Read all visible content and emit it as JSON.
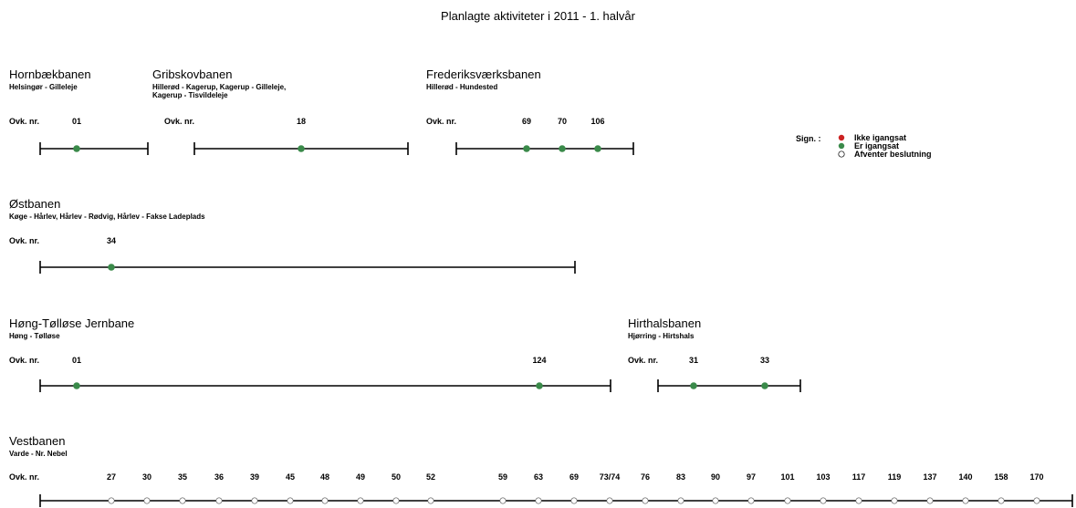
{
  "title": "Planlagte aktiviteter i 2011 - 1. halvår",
  "ovk_label": "Ovk. nr.",
  "colors": {
    "red": "#cc2222",
    "green": "#3a8a4a",
    "open": "#ffffff",
    "line": "#000000"
  },
  "legend": {
    "label": "Sign. :",
    "items": [
      {
        "color": "red",
        "text": "Ikke igangsat"
      },
      {
        "color": "green",
        "text": "Er igangsat"
      },
      {
        "color": "open",
        "text": "Afventer beslutning"
      }
    ]
  },
  "lines": [
    {
      "name": "Hornbækbanen",
      "route": [
        "Helsingør - Gilleleje"
      ],
      "works": [
        {
          "nr": "01",
          "status": "green"
        }
      ]
    },
    {
      "name": "Gribskovbanen",
      "route": [
        "Hillerød - Kagerup, Kagerup - Gilleleje,",
        "Kagerup - Tisvildeleje"
      ],
      "works": [
        {
          "nr": "18",
          "status": "green"
        }
      ]
    },
    {
      "name": "Frederiksværksbanen",
      "route": [
        "Hillerød - Hundested"
      ],
      "works": [
        {
          "nr": "69",
          "status": "green"
        },
        {
          "nr": "70",
          "status": "green"
        },
        {
          "nr": "106",
          "status": "green"
        }
      ]
    },
    {
      "name": "Østbanen",
      "route": [
        "Køge - Hårlev, Hårlev - Rødvig, Hårlev - Fakse Ladeplads"
      ],
      "works": [
        {
          "nr": "34",
          "status": "green"
        }
      ]
    },
    {
      "name": "Høng-Tølløse Jernbane",
      "route": [
        "Høng - Tølløse"
      ],
      "works": [
        {
          "nr": "01",
          "status": "green"
        },
        {
          "nr": "124",
          "status": "green"
        }
      ]
    },
    {
      "name": "Hirthalsbanen",
      "route": [
        "Hjørring - Hirtshals"
      ],
      "works": [
        {
          "nr": "31",
          "status": "green"
        },
        {
          "nr": "33",
          "status": "green"
        }
      ]
    },
    {
      "name": "Vestbanen",
      "route": [
        "Varde - Nr. Nebel"
      ],
      "works": [
        {
          "nr": "27",
          "status": "open"
        },
        {
          "nr": "30",
          "status": "open"
        },
        {
          "nr": "35",
          "status": "open"
        },
        {
          "nr": "36",
          "status": "open"
        },
        {
          "nr": "39",
          "status": "open"
        },
        {
          "nr": "45",
          "status": "open"
        },
        {
          "nr": "48",
          "status": "open"
        },
        {
          "nr": "49",
          "status": "open"
        },
        {
          "nr": "50",
          "status": "open"
        },
        {
          "nr": "52",
          "status": "open"
        },
        {
          "nr": "59",
          "status": "open"
        },
        {
          "nr": "63",
          "status": "open"
        },
        {
          "nr": "69",
          "status": "open"
        },
        {
          "nr": "73/74",
          "status": "open"
        },
        {
          "nr": "76",
          "status": "open"
        },
        {
          "nr": "83",
          "status": "open"
        },
        {
          "nr": "90",
          "status": "open"
        },
        {
          "nr": "97",
          "status": "open"
        },
        {
          "nr": "101",
          "status": "open"
        },
        {
          "nr": "103",
          "status": "open"
        },
        {
          "nr": "117",
          "status": "open"
        },
        {
          "nr": "119",
          "status": "open"
        },
        {
          "nr": "137",
          "status": "open"
        },
        {
          "nr": "140",
          "status": "open"
        },
        {
          "nr": "158",
          "status": "open"
        },
        {
          "nr": "170",
          "status": "open"
        }
      ]
    }
  ]
}
